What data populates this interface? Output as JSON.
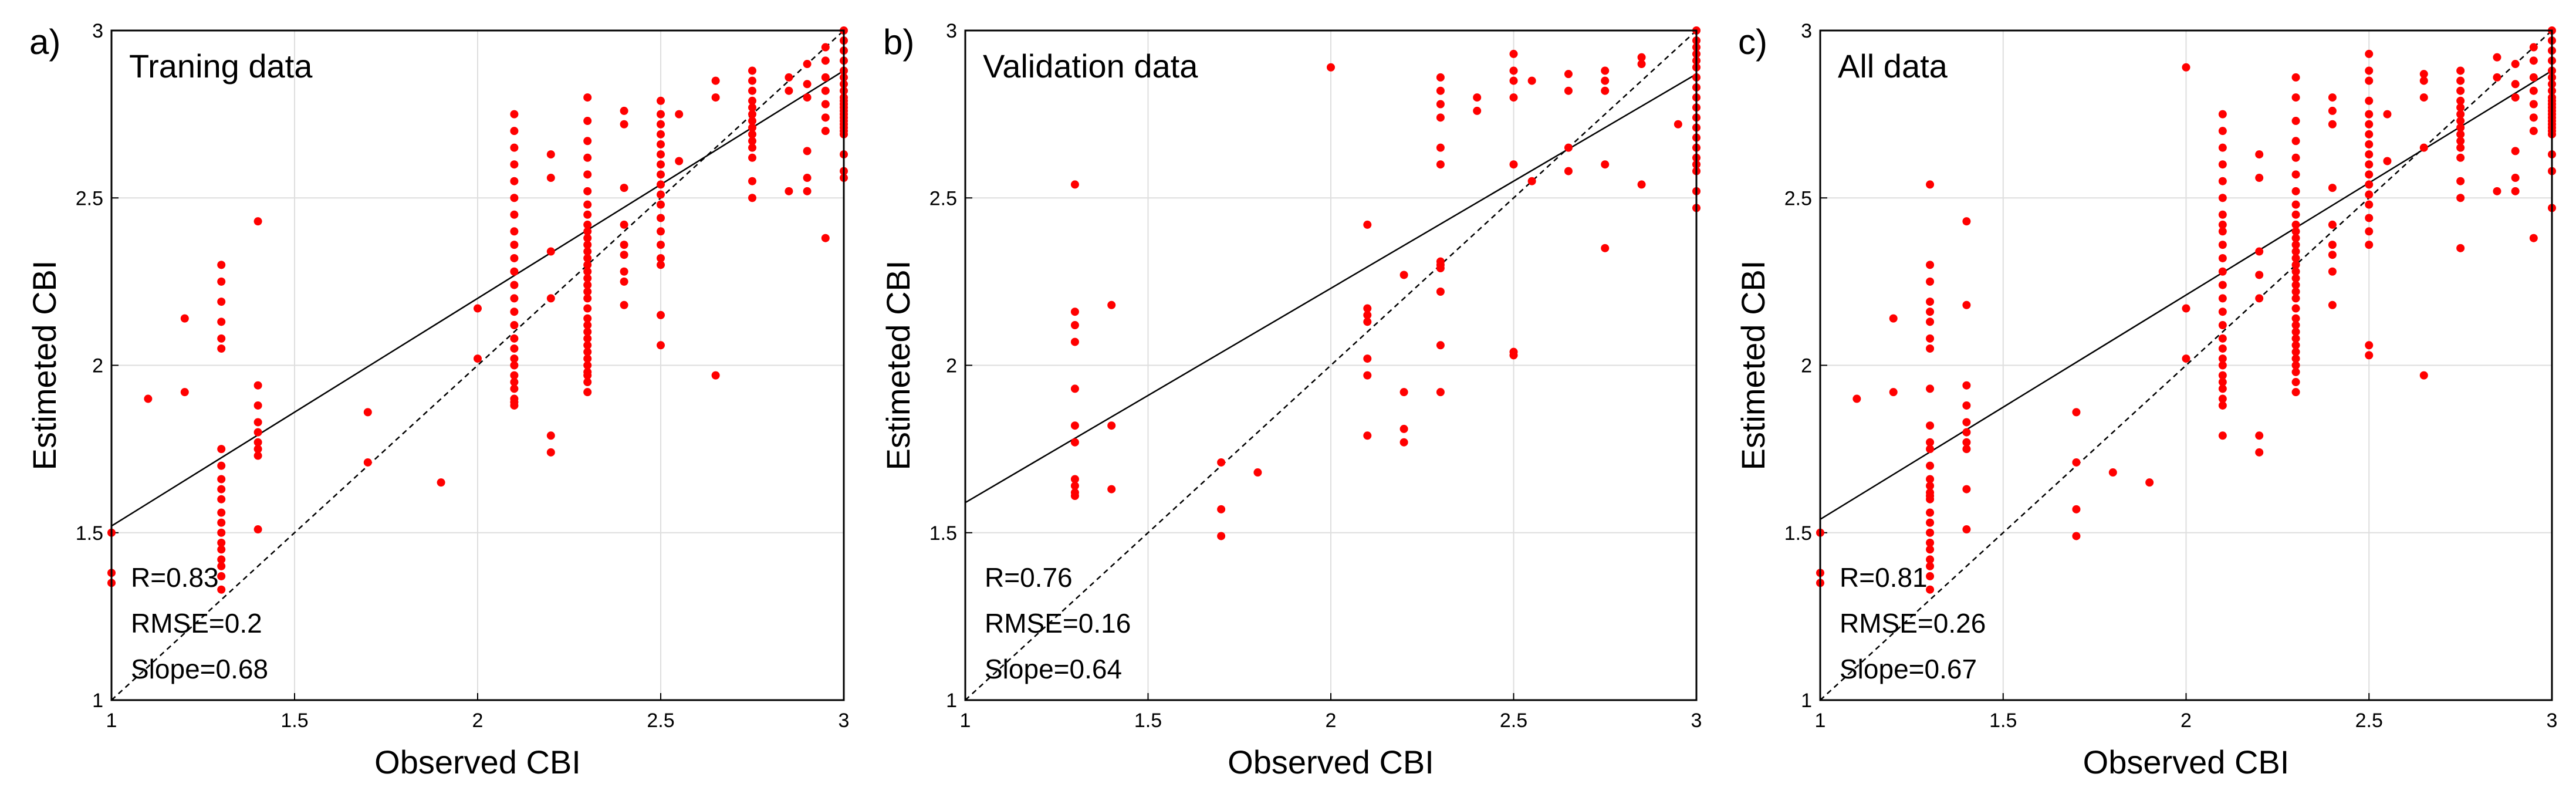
{
  "chart_data": [
    {
      "type": "scatter",
      "panel_label": "a)",
      "title": "Traning data",
      "xlabel": "Observed CBI",
      "ylabel": "Estimeted CBI",
      "xlim": [
        1,
        3
      ],
      "ylim": [
        1,
        3
      ],
      "xticks": [
        "1",
        "1.5",
        "2",
        "2.5",
        "3"
      ],
      "yticks": [
        "1",
        "1.5",
        "2",
        "2.5",
        "3"
      ],
      "grid": true,
      "point_color": "#ff0000",
      "stats": {
        "r": "R=0.83",
        "rmse": "RMSE=0.2",
        "slope": "Slope=0.68"
      },
      "fit_line": {
        "slope": 0.68,
        "intercept": 0.84
      },
      "x": [
        1,
        1,
        1,
        1.1,
        1.2,
        1.2,
        1.3,
        1.3,
        1.3,
        1.3,
        1.3,
        1.3,
        1.3,
        1.3,
        1.3,
        1.3,
        1.3,
        1.3,
        1.3,
        1.3,
        1.3,
        1.3,
        1.3,
        1.3,
        1.3,
        1.3,
        1.4,
        1.4,
        1.4,
        1.4,
        1.4,
        1.4,
        1.4,
        1.4,
        1.4,
        1.7,
        1.7,
        1.9,
        2,
        2,
        2.1,
        2.1,
        2.1,
        2.1,
        2.1,
        2.1,
        2.1,
        2.1,
        2.1,
        2.1,
        2.1,
        2.1,
        2.1,
        2.1,
        2.1,
        2.1,
        2.1,
        2.1,
        2.1,
        2.1,
        2.1,
        2.1,
        2.1,
        2.1,
        2.1,
        2.2,
        2.2,
        2.2,
        2.2,
        2.2,
        2.2,
        2.3,
        2.3,
        2.3,
        2.3,
        2.3,
        2.3,
        2.3,
        2.3,
        2.3,
        2.3,
        2.3,
        2.3,
        2.3,
        2.3,
        2.3,
        2.3,
        2.3,
        2.3,
        2.3,
        2.3,
        2.3,
        2.3,
        2.3,
        2.3,
        2.3,
        2.3,
        2.3,
        2.3,
        2.3,
        2.3,
        2.3,
        2.3,
        2.3,
        2.4,
        2.4,
        2.4,
        2.4,
        2.4,
        2.4,
        2.4,
        2.4,
        2.4,
        2.5,
        2.5,
        2.5,
        2.5,
        2.5,
        2.5,
        2.5,
        2.5,
        2.5,
        2.5,
        2.5,
        2.5,
        2.5,
        2.5,
        2.5,
        2.5,
        2.5,
        2.5,
        2.55,
        2.55,
        2.65,
        2.65,
        2.65,
        2.75,
        2.75,
        2.75,
        2.75,
        2.75,
        2.75,
        2.75,
        2.75,
        2.75,
        2.75,
        2.75,
        2.75,
        2.75,
        2.75,
        2.85,
        2.85,
        2.85,
        2.9,
        2.9,
        2.9,
        2.9,
        2.9,
        2.9,
        2.95,
        2.95,
        2.95,
        2.95,
        2.95,
        2.95,
        2.95,
        2.95,
        3,
        3,
        3,
        3,
        3,
        3,
        3,
        3,
        3,
        3,
        3,
        3,
        3,
        3,
        3,
        3,
        3,
        3,
        3,
        3,
        3,
        3,
        3
      ],
      "y": [
        1.5,
        1.38,
        1.35,
        1.9,
        2.14,
        1.92,
        2.3,
        2.25,
        2.19,
        2.13,
        2.08,
        2.05,
        1.75,
        1.7,
        1.66,
        1.63,
        1.6,
        1.56,
        1.53,
        1.5,
        1.47,
        1.45,
        1.42,
        1.4,
        1.37,
        1.33,
        2.43,
        1.94,
        1.88,
        1.83,
        1.8,
        1.77,
        1.75,
        1.73,
        1.51,
        1.86,
        1.71,
        1.65,
        2.17,
        2.02,
        2.75,
        2.7,
        2.65,
        2.6,
        2.55,
        2.5,
        2.45,
        2.4,
        2.36,
        2.32,
        2.28,
        2.24,
        2.2,
        2.16,
        2.12,
        2.08,
        2.05,
        2.02,
        2,
        1.97,
        1.95,
        1.93,
        1.9,
        1.89,
        1.88,
        2.63,
        2.56,
        2.34,
        2.2,
        1.79,
        1.74,
        2.8,
        2.73,
        2.67,
        2.62,
        2.57,
        2.52,
        2.48,
        2.45,
        2.42,
        2.4,
        2.38,
        2.36,
        2.34,
        2.32,
        2.3,
        2.28,
        2.26,
        2.24,
        2.22,
        2.2,
        2.17,
        2.14,
        2.12,
        2.1,
        2.08,
        2.06,
        2.04,
        2.02,
        2,
        1.98,
        1.97,
        1.95,
        1.92,
        2.76,
        2.72,
        2.53,
        2.42,
        2.36,
        2.33,
        2.28,
        2.25,
        2.18,
        2.79,
        2.75,
        2.72,
        2.69,
        2.66,
        2.63,
        2.6,
        2.57,
        2.54,
        2.51,
        2.48,
        2.44,
        2.4,
        2.36,
        2.32,
        2.3,
        2.15,
        2.06,
        2.75,
        2.61,
        2.85,
        2.8,
        1.97,
        2.88,
        2.85,
        2.82,
        2.79,
        2.77,
        2.75,
        2.73,
        2.71,
        2.69,
        2.67,
        2.65,
        2.62,
        2.55,
        2.5,
        2.86,
        2.82,
        2.52,
        2.9,
        2.84,
        2.8,
        2.64,
        2.56,
        2.52,
        2.95,
        2.91,
        2.86,
        2.82,
        2.78,
        2.74,
        2.7,
        2.38,
        3,
        2.97,
        2.94,
        2.91,
        2.88,
        2.86,
        2.84,
        2.82,
        2.8,
        2.79,
        2.78,
        2.77,
        2.76,
        2.75,
        2.74,
        2.73,
        2.72,
        2.71,
        2.7,
        2.69,
        2.63,
        2.58,
        2.56
      ]
    },
    {
      "type": "scatter",
      "panel_label": "b)",
      "title": "Validation data",
      "xlabel": "Observed CBI",
      "ylabel": "Estimeted CBI",
      "xlim": [
        1,
        3
      ],
      "ylim": [
        1,
        3
      ],
      "xticks": [
        "1",
        "1.5",
        "2",
        "2.5",
        "3"
      ],
      "yticks": [
        "1",
        "1.5",
        "2",
        "2.5",
        "3"
      ],
      "grid": true,
      "point_color": "#ff0000",
      "stats": {
        "r": "R=0.76",
        "rmse": "RMSE=0.16",
        "slope": "Slope=0.64"
      },
      "fit_line": {
        "slope": 0.64,
        "intercept": 0.95
      },
      "x": [
        1.3,
        1.3,
        1.3,
        1.3,
        1.3,
        1.3,
        1.3,
        1.3,
        1.3,
        1.3,
        1.3,
        1.4,
        1.4,
        1.4,
        1.7,
        1.7,
        1.7,
        1.8,
        2,
        2.1,
        2.1,
        2.1,
        2.1,
        2.1,
        2.1,
        2.1,
        2.2,
        2.2,
        2.2,
        2.2,
        2.3,
        2.3,
        2.3,
        2.3,
        2.3,
        2.3,
        2.3,
        2.3,
        2.3,
        2.3,
        2.3,
        2.3,
        2.4,
        2.4,
        2.5,
        2.5,
        2.5,
        2.5,
        2.5,
        2.5,
        2.5,
        2.55,
        2.55,
        2.65,
        2.65,
        2.65,
        2.65,
        2.75,
        2.75,
        2.75,
        2.75,
        2.75,
        2.85,
        2.85,
        2.85,
        2.95,
        3,
        3,
        3,
        3,
        3,
        3,
        3,
        3,
        3,
        3,
        3,
        3,
        3,
        3,
        3,
        3,
        3,
        3,
        3
      ],
      "y": [
        2.54,
        2.16,
        2.12,
        2.07,
        1.93,
        1.82,
        1.77,
        1.66,
        1.64,
        1.62,
        1.61,
        2.18,
        1.82,
        1.63,
        1.71,
        1.57,
        1.49,
        1.68,
        2.89,
        2.42,
        2.17,
        2.15,
        2.13,
        2.02,
        1.97,
        1.79,
        2.27,
        1.92,
        1.81,
        1.77,
        2.86,
        2.82,
        2.78,
        2.74,
        2.65,
        2.6,
        2.31,
        2.29,
        2.22,
        2.06,
        1.92,
        2.3,
        2.8,
        2.76,
        2.93,
        2.88,
        2.85,
        2.8,
        2.6,
        2.04,
        2.03,
        2.85,
        2.55,
        2.87,
        2.82,
        2.65,
        2.58,
        2.88,
        2.85,
        2.82,
        2.6,
        2.35,
        2.92,
        2.9,
        2.54,
        2.72,
        3,
        2.97,
        2.95,
        2.93,
        2.91,
        2.89,
        2.86,
        2.83,
        2.8,
        2.77,
        2.74,
        2.71,
        2.68,
        2.65,
        2.62,
        2.6,
        2.58,
        2.52,
        2.47
      ]
    },
    {
      "type": "scatter",
      "panel_label": "c)",
      "title": "All data",
      "xlabel": "Observed CBI",
      "ylabel": "Estimeted CBI",
      "xlim": [
        1,
        3
      ],
      "ylim": [
        1,
        3
      ],
      "xticks": [
        "1",
        "1.5",
        "2",
        "2.5",
        "3"
      ],
      "yticks": [
        "1",
        "1.5",
        "2",
        "2.5",
        "3"
      ],
      "grid": true,
      "point_color": "#ff0000",
      "stats": {
        "r": "R=0.81",
        "rmse": "RMSE=0.26",
        "slope": "Slope=0.67"
      },
      "fit_line": {
        "slope": 0.67,
        "intercept": 0.87
      },
      "x": [
        1,
        1,
        1,
        1.1,
        1.2,
        1.2,
        1.3,
        1.3,
        1.3,
        1.3,
        1.3,
        1.3,
        1.3,
        1.3,
        1.3,
        1.3,
        1.3,
        1.3,
        1.3,
        1.3,
        1.3,
        1.3,
        1.3,
        1.3,
        1.3,
        1.3,
        1.3,
        1.3,
        1.3,
        1.3,
        1.3,
        1.3,
        1.3,
        1.4,
        1.4,
        1.4,
        1.4,
        1.4,
        1.4,
        1.4,
        1.4,
        1.4,
        1.4,
        1.7,
        1.7,
        1.7,
        1.7,
        1.8,
        1.9,
        2,
        2,
        2,
        2.1,
        2.1,
        2.1,
        2.1,
        2.1,
        2.1,
        2.1,
        2.1,
        2.1,
        2.1,
        2.1,
        2.1,
        2.1,
        2.1,
        2.1,
        2.1,
        2.1,
        2.1,
        2.1,
        2.1,
        2.1,
        2.1,
        2.1,
        2.1,
        2.1,
        2.1,
        2.2,
        2.2,
        2.2,
        2.2,
        2.2,
        2.2,
        2.2,
        2.3,
        2.3,
        2.3,
        2.3,
        2.3,
        2.3,
        2.3,
        2.3,
        2.3,
        2.3,
        2.3,
        2.3,
        2.3,
        2.3,
        2.3,
        2.3,
        2.3,
        2.3,
        2.3,
        2.3,
        2.3,
        2.3,
        2.3,
        2.3,
        2.3,
        2.3,
        2.3,
        2.3,
        2.3,
        2.3,
        2.3,
        2.3,
        2.3,
        2.4,
        2.4,
        2.4,
        2.4,
        2.4,
        2.4,
        2.4,
        2.4,
        2.4,
        2.5,
        2.5,
        2.5,
        2.5,
        2.5,
        2.5,
        2.5,
        2.5,
        2.5,
        2.5,
        2.5,
        2.5,
        2.5,
        2.5,
        2.5,
        2.5,
        2.5,
        2.5,
        2.5,
        2.55,
        2.55,
        2.65,
        2.65,
        2.65,
        2.65,
        2.65,
        2.75,
        2.75,
        2.75,
        2.75,
        2.75,
        2.75,
        2.75,
        2.75,
        2.75,
        2.75,
        2.75,
        2.75,
        2.75,
        2.75,
        2.75,
        2.85,
        2.85,
        2.85,
        2.9,
        2.9,
        2.9,
        2.9,
        2.9,
        2.9,
        2.95,
        2.95,
        2.95,
        2.95,
        2.95,
        2.95,
        2.95,
        2.95,
        3,
        3,
        3,
        3,
        3,
        3,
        3,
        3,
        3,
        3,
        3,
        3,
        3,
        3,
        3,
        3,
        3,
        3,
        3,
        3,
        3,
        3,
        3
      ],
      "y": [
        1.5,
        1.38,
        1.35,
        1.9,
        2.14,
        1.92,
        2.54,
        2.3,
        2.25,
        2.19,
        2.16,
        2.13,
        2.08,
        2.05,
        1.93,
        1.82,
        1.77,
        1.75,
        1.7,
        1.66,
        1.64,
        1.62,
        1.6,
        1.56,
        1.53,
        1.5,
        1.47,
        1.45,
        1.42,
        1.4,
        1.37,
        1.33,
        1.61,
        2.43,
        2.18,
        1.94,
        1.88,
        1.83,
        1.8,
        1.77,
        1.75,
        1.63,
        1.51,
        1.86,
        1.71,
        1.57,
        1.49,
        1.68,
        1.65,
        2.89,
        2.17,
        2.02,
        2.75,
        2.7,
        2.65,
        2.6,
        2.55,
        2.5,
        2.45,
        2.42,
        2.4,
        2.36,
        2.32,
        2.28,
        2.24,
        2.2,
        2.16,
        2.12,
        2.08,
        2.05,
        2.02,
        2,
        1.97,
        1.95,
        1.93,
        1.9,
        1.88,
        1.79,
        2.63,
        2.56,
        2.34,
        2.27,
        2.2,
        1.79,
        1.74,
        2.86,
        2.8,
        2.73,
        2.67,
        2.62,
        2.57,
        2.52,
        2.48,
        2.45,
        2.42,
        2.4,
        2.38,
        2.36,
        2.34,
        2.32,
        2.3,
        2.28,
        2.26,
        2.24,
        2.22,
        2.2,
        2.17,
        2.14,
        2.12,
        2.1,
        2.08,
        2.06,
        2.04,
        2.02,
        2,
        1.98,
        1.95,
        1.92,
        2.8,
        2.76,
        2.72,
        2.53,
        2.42,
        2.36,
        2.33,
        2.28,
        2.18,
        2.93,
        2.88,
        2.85,
        2.79,
        2.75,
        2.72,
        2.69,
        2.66,
        2.63,
        2.6,
        2.57,
        2.54,
        2.51,
        2.48,
        2.44,
        2.4,
        2.36,
        2.06,
        2.03,
        2.75,
        2.61,
        2.87,
        2.85,
        2.8,
        2.65,
        1.97,
        2.88,
        2.85,
        2.82,
        2.79,
        2.77,
        2.75,
        2.73,
        2.71,
        2.69,
        2.67,
        2.65,
        2.62,
        2.55,
        2.5,
        2.35,
        2.92,
        2.86,
        2.52,
        2.9,
        2.84,
        2.8,
        2.64,
        2.56,
        2.52,
        2.95,
        2.91,
        2.86,
        2.82,
        2.78,
        2.74,
        2.7,
        2.38,
        3,
        2.97,
        2.94,
        2.91,
        2.88,
        2.86,
        2.84,
        2.82,
        2.8,
        2.79,
        2.78,
        2.77,
        2.76,
        2.75,
        2.74,
        2.73,
        2.72,
        2.71,
        2.7,
        2.69,
        2.63,
        2.58,
        2.47
      ]
    }
  ]
}
